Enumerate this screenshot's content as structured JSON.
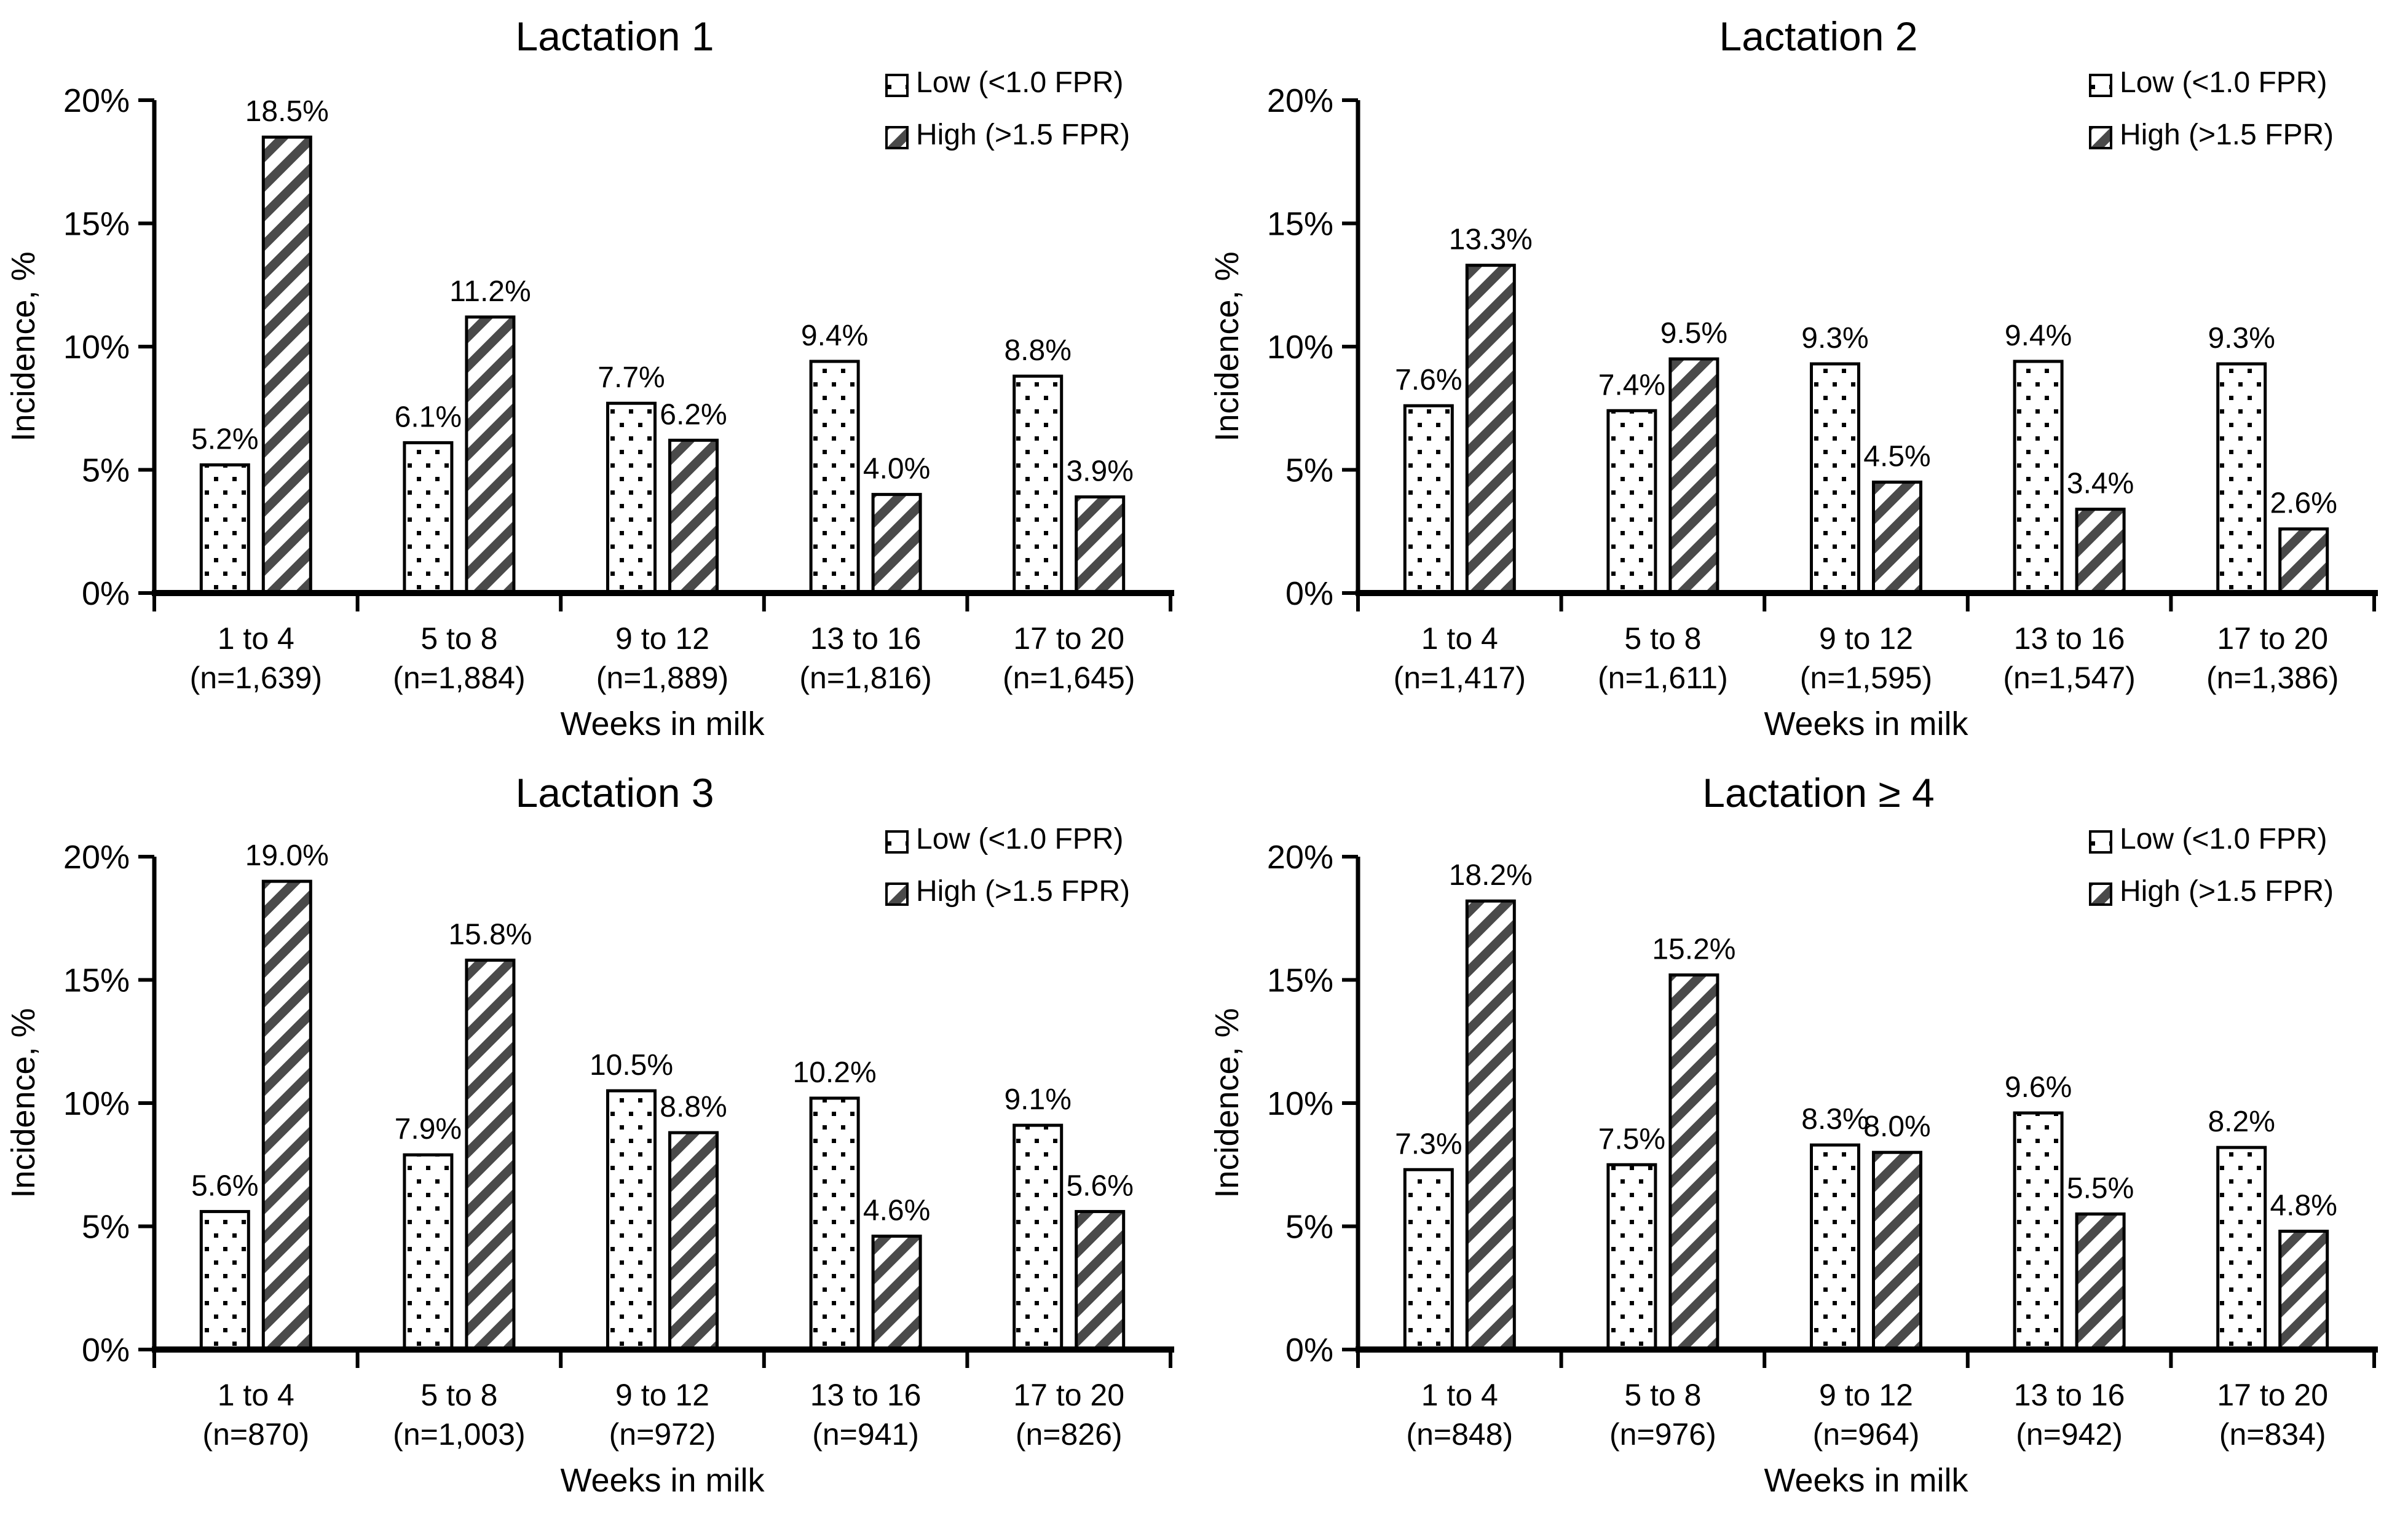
{
  "figure": {
    "name": "Incidence by weeks in milk and fat-to-protein ratio, per lactation group",
    "ylabel": "Incidence, %",
    "xlabel": "Weeks in milk",
    "y_ticks": [
      "0%",
      "5%",
      "10%",
      "15%",
      "20%"
    ],
    "ylim": [
      0,
      20
    ],
    "legend": [
      {
        "name": "Low (<1.0 FPR)",
        "pattern": "dotted"
      },
      {
        "name": "High (>1.5 FPR)",
        "pattern": "diagonal-stripes"
      }
    ],
    "colors": {
      "text": "#000000",
      "axis": "#000000",
      "bar_outline": "#000000",
      "dot_black": "#000000",
      "hatch_gray": "#4a4a4a",
      "background": "#ffffff"
    }
  },
  "chart_data": [
    {
      "type": "bar",
      "title": "Lactation 1",
      "categories": [
        "1 to 4",
        "5 to 8",
        "9 to 12",
        "13 to 16",
        "17 to 20"
      ],
      "category_n": [
        "(n=1,639)",
        "(n=1,884)",
        "(n=1,889)",
        "(n=1,816)",
        "(n=1,645)"
      ],
      "xlabel": "Weeks in milk",
      "ylabel": "Incidence, %",
      "ylim": [
        0,
        20
      ],
      "grid": false,
      "legend_position": "top-right",
      "series": [
        {
          "name": "Low (<1.0 FPR)",
          "values": [
            5.2,
            6.1,
            7.7,
            9.4,
            8.8
          ],
          "labels": [
            "5.2%",
            "6.1%",
            "7.7%",
            "9.4%",
            "8.8%"
          ]
        },
        {
          "name": "High (>1.5 FPR)",
          "values": [
            18.5,
            11.2,
            6.2,
            4.0,
            3.9
          ],
          "labels": [
            "18.5%",
            "11.2%",
            "6.2%",
            "4.0%",
            "3.9%"
          ]
        }
      ]
    },
    {
      "type": "bar",
      "title": "Lactation 2",
      "categories": [
        "1 to 4",
        "5 to 8",
        "9 to 12",
        "13 to 16",
        "17 to 20"
      ],
      "category_n": [
        "(n=1,417)",
        "(n=1,611)",
        "(n=1,595)",
        "(n=1,547)",
        "(n=1,386)"
      ],
      "xlabel": "Weeks in milk",
      "ylabel": "Incidence, %",
      "ylim": [
        0,
        20
      ],
      "grid": false,
      "legend_position": "top-right",
      "series": [
        {
          "name": "Low (<1.0 FPR)",
          "values": [
            7.6,
            7.4,
            9.3,
            9.4,
            9.3
          ],
          "labels": [
            "7.6%",
            "7.4%",
            "9.3%",
            "9.4%",
            "9.3%"
          ]
        },
        {
          "name": "High (>1.5 FPR)",
          "values": [
            13.3,
            9.5,
            4.5,
            3.4,
            2.6
          ],
          "labels": [
            "13.3%",
            "9.5%",
            "4.5%",
            "3.4%",
            "2.6%"
          ]
        }
      ]
    },
    {
      "type": "bar",
      "title": "Lactation 3",
      "categories": [
        "1 to 4",
        "5 to 8",
        "9 to 12",
        "13 to 16",
        "17 to 20"
      ],
      "category_n": [
        "(n=870)",
        "(n=1,003)",
        "(n=972)",
        "(n=941)",
        "(n=826)"
      ],
      "xlabel": "Weeks in milk",
      "ylabel": "Incidence, %",
      "ylim": [
        0,
        20
      ],
      "grid": false,
      "legend_position": "top-right",
      "series": [
        {
          "name": "Low (<1.0 FPR)",
          "values": [
            5.6,
            7.9,
            10.5,
            10.2,
            9.1
          ],
          "labels": [
            "5.6%",
            "7.9%",
            "10.5%",
            "10.2%",
            "9.1%"
          ]
        },
        {
          "name": "High (>1.5 FPR)",
          "values": [
            19.0,
            15.8,
            8.8,
            4.6,
            5.6
          ],
          "labels": [
            "19.0%",
            "15.8%",
            "8.8%",
            "4.6%",
            "5.6%"
          ]
        }
      ]
    },
    {
      "type": "bar",
      "title": "Lactation ≥ 4",
      "categories": [
        "1 to 4",
        "5 to 8",
        "9 to 12",
        "13 to 16",
        "17 to 20"
      ],
      "category_n": [
        "(n=848)",
        "(n=976)",
        "(n=964)",
        "(n=942)",
        "(n=834)"
      ],
      "xlabel": "Weeks in milk",
      "ylabel": "Incidence, %",
      "ylim": [
        0,
        20
      ],
      "grid": false,
      "legend_position": "top-right",
      "series": [
        {
          "name": "Low (<1.0 FPR)",
          "values": [
            7.3,
            7.5,
            8.3,
            9.6,
            8.2
          ],
          "labels": [
            "7.3%",
            "7.5%",
            "8.3%",
            "9.6%",
            "8.2%"
          ]
        },
        {
          "name": "High (>1.5 FPR)",
          "values": [
            18.2,
            15.2,
            8.0,
            5.5,
            4.8
          ],
          "labels": [
            "18.2%",
            "15.2%",
            "8.0%",
            "5.5%",
            "4.8%"
          ]
        }
      ]
    }
  ]
}
